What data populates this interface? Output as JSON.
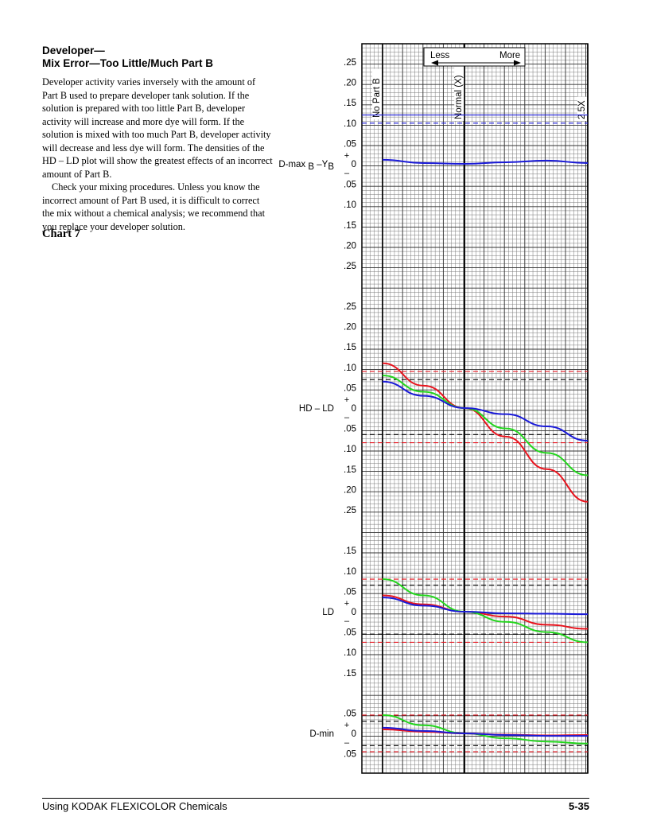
{
  "heading": {
    "line1": "Developer—",
    "line2": "Mix Error—Too Little/Much Part B"
  },
  "body": {
    "para1": "Developer activity varies inversely with the amount of Part B used to prepare developer tank solution. If the solution is prepared with too little Part B, developer activity will increase and more dye will form. If the solution is mixed with too much Part B, developer activity will decrease and less dye will form. The densities of the HD – LD plot will show the greatest effects of an incorrect amount of Part B.",
    "para2": "Check your mixing procedures. Unless you know the incorrect amount of Part B used, it is difficult to correct the mix without a chemical analysis; we recommend that you replace your developer solution."
  },
  "chart_title": "Chart 7",
  "footer": {
    "left": "Using KODAK FLEXICOLOR Chemicals",
    "right": "5-35"
  },
  "colors": {
    "red": "#e8141e",
    "green": "#22d51c",
    "blue": "#1a1ad8",
    "grid": "#7a7a7a",
    "dashed_black": "#000000"
  },
  "chart_data": {
    "type": "line",
    "x_labels": {
      "no_part_b": "No Part B",
      "normal": "Normal (X)",
      "x25": "2.5X"
    },
    "direction": {
      "less": "Less",
      "more": "More"
    },
    "x_positions": {
      "no_part_b": 0,
      "normal": 1,
      "x25": 2.5
    },
    "panels": [
      {
        "name": "dmax",
        "label_main": "D-max",
        "label_sub1": "B",
        "label_mid": " –Y",
        "label_sub2": "B",
        "ticks_top": [
          ".25",
          ".20",
          ".15",
          ".10",
          ".05"
        ],
        "ticks_bottom": [
          ".05",
          ".10",
          ".15",
          ".20",
          ".25"
        ],
        "zero": "0",
        "plus": "+",
        "minus": "–",
        "limits": [
          {
            "value": 0.12,
            "color": "blue",
            "style": "solid"
          },
          {
            "value": 0.1,
            "color": "blue",
            "style": "dashed"
          }
        ],
        "series": [
          {
            "color": "blue",
            "x": [
              0,
              0.5,
              1,
              1.5,
              2,
              2.5
            ],
            "y": [
              0.01,
              0.002,
              0.0,
              0.004,
              0.008,
              0.002
            ]
          }
        ]
      },
      {
        "name": "hdld",
        "label_main": "HD – LD",
        "ticks_top": [
          ".25",
          ".20",
          ".15",
          ".10",
          ".05"
        ],
        "ticks_bottom": [
          ".05",
          ".10",
          ".15",
          ".20",
          ".25"
        ],
        "zero": "0",
        "plus": "+",
        "minus": "–",
        "limits": [
          {
            "value": 0.09,
            "color": "red",
            "style": "dashed"
          },
          {
            "value": 0.07,
            "color": "black",
            "style": "dashed"
          },
          {
            "value": -0.065,
            "color": "black",
            "style": "dashed"
          },
          {
            "value": -0.085,
            "color": "red",
            "style": "dashed"
          }
        ],
        "series": [
          {
            "color": "red",
            "x": [
              0,
              0.5,
              1,
              1.5,
              2,
              2.5
            ],
            "y": [
              0.11,
              0.055,
              0.0,
              -0.07,
              -0.15,
              -0.23
            ]
          },
          {
            "color": "green",
            "x": [
              0,
              0.5,
              1,
              1.5,
              2,
              2.5
            ],
            "y": [
              0.08,
              0.04,
              0.0,
              -0.05,
              -0.11,
              -0.165
            ]
          },
          {
            "color": "blue",
            "x": [
              0,
              0.5,
              1,
              1.5,
              2,
              2.5
            ],
            "y": [
              0.065,
              0.03,
              0.0,
              -0.015,
              -0.045,
              -0.08
            ]
          }
        ]
      },
      {
        "name": "ld",
        "label_main": "LD",
        "ticks_top": [
          ".15",
          ".10",
          ".05"
        ],
        "ticks_bottom": [
          ".05",
          ".10",
          ".15"
        ],
        "zero": "0",
        "plus": "+",
        "minus": "–",
        "limits": [
          {
            "value": 0.08,
            "color": "red",
            "style": "dashed"
          },
          {
            "value": 0.065,
            "color": "black",
            "style": "dashed"
          },
          {
            "value": -0.055,
            "color": "black",
            "style": "dashed"
          },
          {
            "value": -0.075,
            "color": "red",
            "style": "dashed"
          }
        ],
        "series": [
          {
            "color": "red",
            "x": [
              0,
              0.5,
              1,
              1.5,
              2,
              2.5
            ],
            "y": [
              0.04,
              0.018,
              0.0,
              -0.012,
              -0.032,
              -0.042
            ]
          },
          {
            "color": "green",
            "x": [
              0,
              0.5,
              1,
              1.5,
              2,
              2.5
            ],
            "y": [
              0.08,
              0.04,
              0.0,
              -0.025,
              -0.05,
              -0.075
            ]
          },
          {
            "color": "blue",
            "x": [
              0,
              0.5,
              1,
              1.5,
              2,
              2.5
            ],
            "y": [
              0.035,
              0.015,
              0.0,
              -0.004,
              -0.005,
              -0.006
            ]
          }
        ]
      },
      {
        "name": "dmin",
        "label_main": "D-min",
        "ticks_top": [
          ".05"
        ],
        "ticks_bottom": [
          ".05"
        ],
        "zero": "0",
        "plus": "+",
        "minus": "–",
        "limits": [
          {
            "value": 0.045,
            "color": "red",
            "style": "dashed"
          },
          {
            "value": 0.03,
            "color": "black",
            "style": "dashed"
          },
          {
            "value": -0.03,
            "color": "black",
            "style": "dashed"
          },
          {
            "value": -0.045,
            "color": "red",
            "style": "dashed"
          }
        ],
        "series": [
          {
            "color": "green",
            "x": [
              0,
              0.5,
              1,
              1.5,
              2,
              2.5
            ],
            "y": [
              0.045,
              0.02,
              0.0,
              -0.012,
              -0.02,
              -0.025
            ]
          },
          {
            "color": "red",
            "x": [
              0,
              0.5,
              1,
              1.5,
              2,
              2.5
            ],
            "y": [
              0.01,
              0.004,
              0.0,
              -0.003,
              -0.005,
              -0.004
            ]
          },
          {
            "color": "blue",
            "x": [
              0,
              0.5,
              1,
              1.5,
              2,
              2.5
            ],
            "y": [
              0.014,
              0.006,
              0.0,
              -0.004,
              -0.006,
              -0.006
            ]
          }
        ]
      }
    ]
  }
}
